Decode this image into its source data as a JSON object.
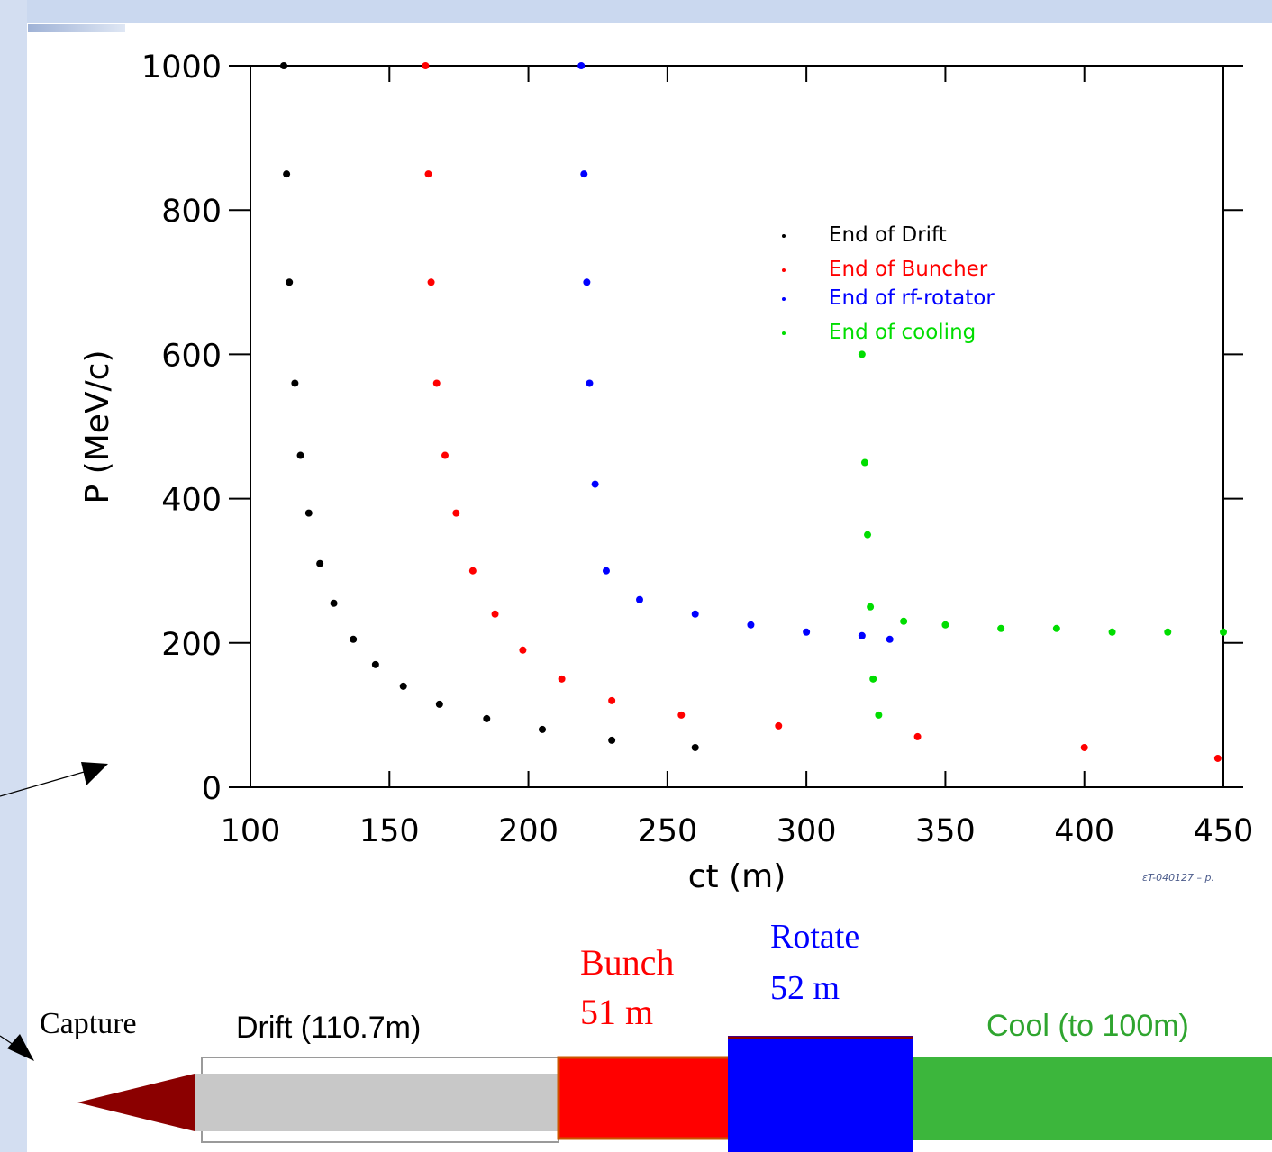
{
  "chart_data": {
    "type": "scatter",
    "title": "",
    "xlabel": "ct  (m)",
    "ylabel": "P  (MeV/c)",
    "xlim": [
      100,
      450
    ],
    "ylim": [
      0,
      1000
    ],
    "x_ticks": [
      100,
      150,
      200,
      250,
      300,
      350,
      400,
      450
    ],
    "y_ticks": [
      0,
      200,
      400,
      600,
      800,
      1000
    ],
    "grid": false,
    "legend_position": "upper-right",
    "series": [
      {
        "name": "End of Drift",
        "color": "#000000",
        "x": [
          112,
          113,
          114,
          116,
          118,
          121,
          125,
          130,
          137,
          145,
          155,
          168,
          185,
          205,
          230,
          260
        ],
        "y": [
          1000,
          850,
          700,
          560,
          460,
          380,
          310,
          255,
          205,
          170,
          140,
          115,
          95,
          80,
          65,
          55
        ]
      },
      {
        "name": "End of Buncher",
        "color": "#ff0000",
        "x": [
          163,
          164,
          165,
          167,
          170,
          174,
          180,
          188,
          198,
          212,
          230,
          255,
          290,
          340,
          400,
          448
        ],
        "y": [
          1000,
          850,
          700,
          560,
          460,
          380,
          300,
          240,
          190,
          150,
          120,
          100,
          85,
          70,
          55,
          40
        ]
      },
      {
        "name": "End of rf-rotator",
        "color": "#0000ff",
        "x": [
          219,
          220,
          221,
          222,
          224,
          228,
          240,
          260,
          280,
          300,
          320,
          330
        ],
        "y": [
          1000,
          850,
          700,
          560,
          420,
          300,
          260,
          240,
          225,
          215,
          210,
          205
        ]
      },
      {
        "name": "End of cooling",
        "color": "#00dd00",
        "x": [
          320,
          321,
          322,
          323,
          324,
          326,
          335,
          350,
          370,
          390,
          410,
          430,
          450
        ],
        "y": [
          600,
          450,
          350,
          250,
          150,
          100,
          230,
          225,
          220,
          220,
          215,
          215,
          215
        ]
      }
    ]
  },
  "note": "εT-040127 – p.",
  "stages": {
    "capture": "Capture",
    "drift": "Drift (110.7m)",
    "bunch_line1": "Bunch",
    "bunch_line2": "51 m",
    "rotate_line1": "Rotate",
    "rotate_line2": "52 m",
    "cool": "Cool (to 100m)"
  },
  "colors": {
    "drift_pipe": "#c8c8c8",
    "buncher": "#ff0000",
    "rotator": "#0000ff",
    "cooler": "#3cb63c",
    "capture_cone": "#8b0000"
  }
}
